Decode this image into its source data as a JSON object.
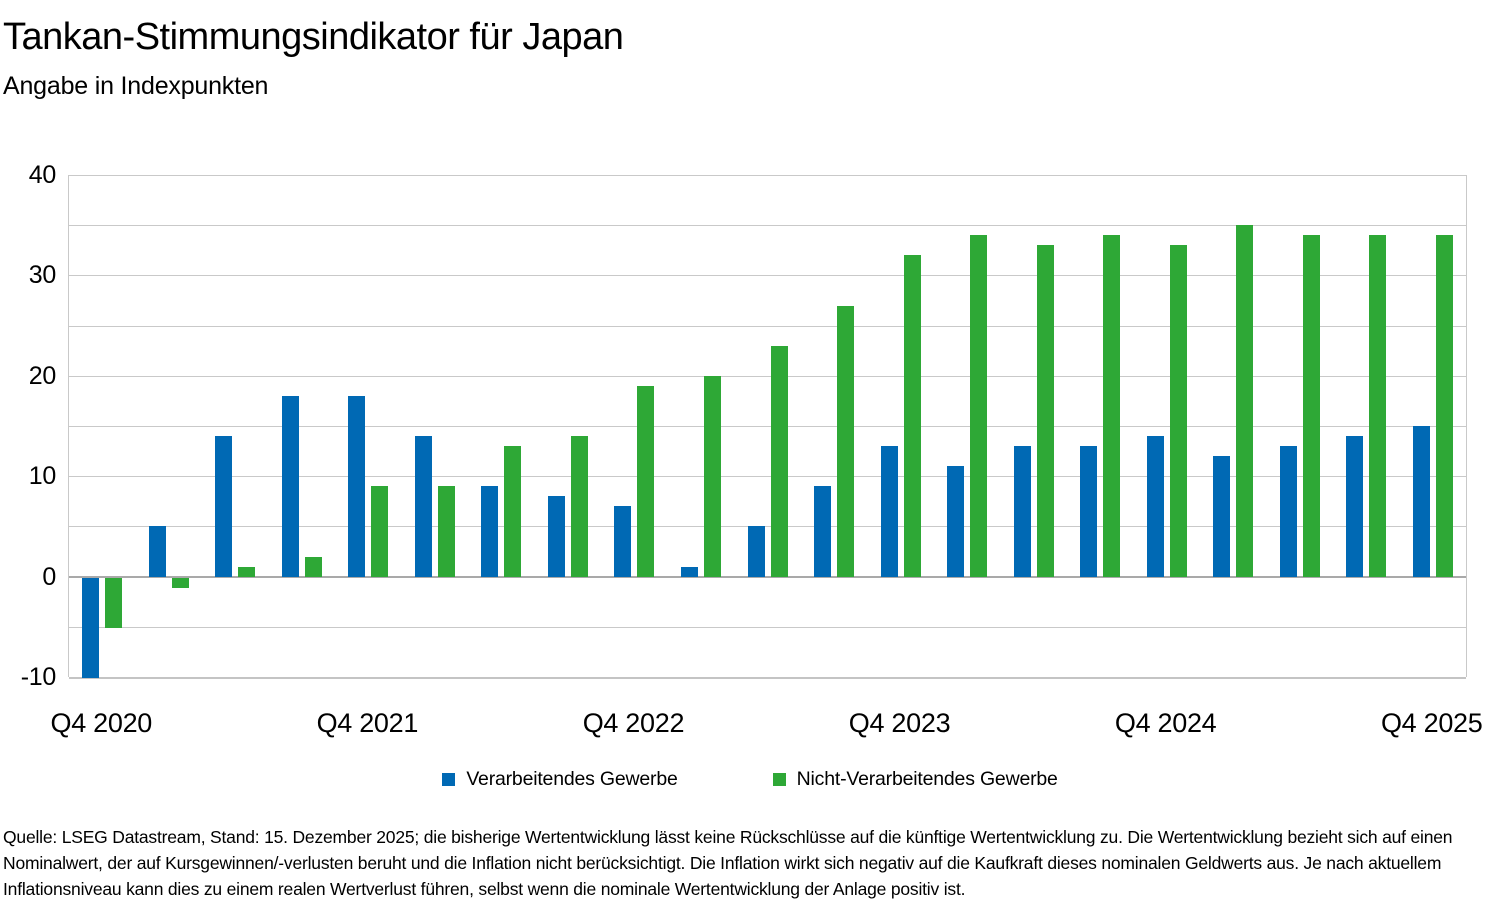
{
  "header": {
    "title": "Tankan-Stimmungsindikator für Japan",
    "subtitle": "Angabe in Indexpunkten"
  },
  "chart_data": {
    "type": "bar",
    "categories": [
      "Q4 2020",
      "Q1 2021",
      "Q2 2021",
      "Q3 2021",
      "Q4 2021",
      "Q1 2022",
      "Q2 2022",
      "Q3 2022",
      "Q4 2022",
      "Q1 2023",
      "Q2 2023",
      "Q3 2023",
      "Q4 2023",
      "Q1 2024",
      "Q2 2024",
      "Q3 2024",
      "Q4 2024",
      "Q1 2025",
      "Q2 2025",
      "Q3 2025",
      "Q4 2025"
    ],
    "series": [
      {
        "name": "Verarbeitendes Gewerbe",
        "color": "#0069b4",
        "values": [
          -10,
          5,
          14,
          18,
          18,
          14,
          9,
          8,
          7,
          1,
          5,
          9,
          13,
          11,
          13,
          13,
          14,
          12,
          13,
          14,
          15
        ]
      },
      {
        "name": "Nicht-Verarbeitendes Gewerbe",
        "color": "#2ea836",
        "values": [
          -5,
          -1,
          1,
          2,
          9,
          9,
          13,
          14,
          19,
          20,
          23,
          27,
          32,
          34,
          33,
          34,
          33,
          35,
          34,
          34,
          34
        ]
      }
    ],
    "title": "Tankan-Stimmungsindikator für Japan",
    "ylabel": "",
    "xlabel": "",
    "ylim": [
      -10,
      40
    ],
    "grid_step": 5,
    "grid": true,
    "yticks_labeled": [
      40,
      30,
      20,
      10,
      0,
      -10
    ],
    "xtick_labels": [
      "Q4 2020",
      "Q4 2021",
      "Q4 2022",
      "Q4 2023",
      "Q4 2024",
      "Q4 2025"
    ],
    "xtick_indices": [
      0,
      4,
      8,
      12,
      16,
      20
    ],
    "legend_position": "bottom"
  },
  "footer": {
    "text": "Quelle: LSEG Datastream, Stand: 15. Dezember 2025; die bisherige Wertentwicklung lässt keine Rückschlüsse auf die künftige Wertentwicklung zu. Die Wertentwicklung bezieht sich auf einen Nominalwert, der auf Kursgewinnen/-verlusten beruht und die Inflation nicht berücksichtigt. Die Inflation wirkt sich negativ auf die Kaufkraft dieses nominalen Geldwerts aus. Je nach aktuellem Inflationsniveau kann dies zu einem realen Wertverlust führen, selbst wenn die nominale Wertentwicklung der Anlage positiv ist."
  },
  "colors": {
    "bar_blue": "#0069b4",
    "bar_green": "#2ea836",
    "gridline": "#c9c9c9",
    "zero_line": "#a9a9a9",
    "text": "#000000"
  }
}
